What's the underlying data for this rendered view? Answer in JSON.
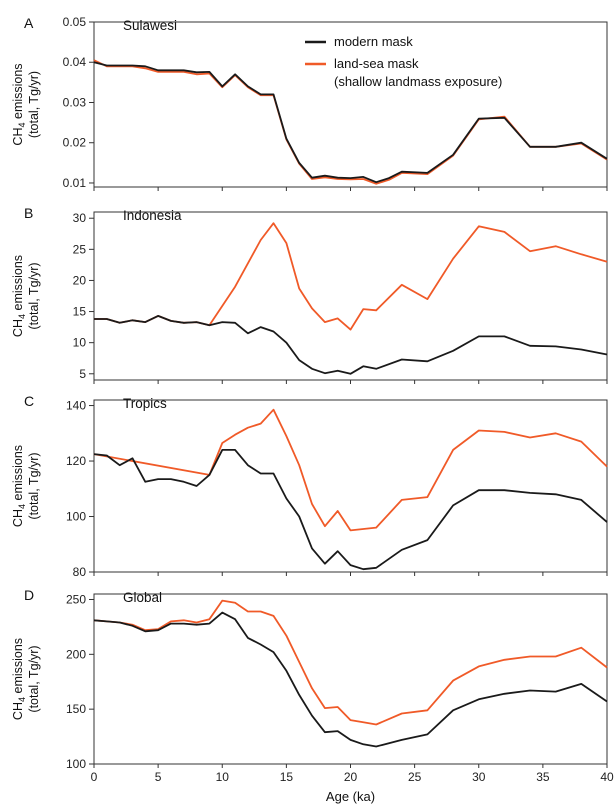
{
  "figure": {
    "xlabel": "Age (ka)",
    "legend": {
      "placement": "top-right of panel A",
      "entries": [
        {
          "label": "modern mask",
          "color": "#1a1a1a"
        },
        {
          "label": "land-sea mask",
          "sub": "(shallow landmass exposure)",
          "color": "#f05a28"
        }
      ]
    },
    "colors": {
      "modern": "#1a1a1a",
      "landsea": "#f05a28"
    }
  },
  "chart_data": [
    {
      "type": "line",
      "panel_letter": "A",
      "title": "Sulawesi",
      "ylabel_line1": "CH4 emissions",
      "ylabel_line2": "(total, Tg/yr)",
      "xlim": [
        0,
        40
      ],
      "ylim": [
        0.009,
        0.05
      ],
      "yticks": [
        "0.01",
        "0.02",
        "0.03",
        "0.04",
        "0.05"
      ],
      "xticks": [
        "0",
        "5",
        "10",
        "15",
        "20",
        "25",
        "30",
        "35",
        "40"
      ],
      "series": [
        {
          "name": "modern mask",
          "x": [
            0,
            1,
            2,
            3,
            4,
            5,
            6,
            7,
            8,
            9,
            10,
            11,
            12,
            13,
            14,
            15,
            16,
            17,
            18,
            19,
            20,
            21,
            22,
            23,
            24,
            26,
            28,
            30,
            32,
            34,
            36,
            38,
            40
          ],
          "y": [
            0.04,
            0.0392,
            0.0392,
            0.0392,
            0.039,
            0.038,
            0.038,
            0.038,
            0.0375,
            0.0376,
            0.034,
            0.037,
            0.034,
            0.032,
            0.032,
            0.021,
            0.015,
            0.0113,
            0.0118,
            0.0113,
            0.0112,
            0.0115,
            0.0102,
            0.0112,
            0.0128,
            0.0125,
            0.017,
            0.026,
            0.0262,
            0.019,
            0.019,
            0.02,
            0.016
          ]
        },
        {
          "name": "land-sea mask",
          "x": [
            0,
            1,
            2,
            3,
            4,
            5,
            6,
            7,
            8,
            9,
            10,
            11,
            12,
            13,
            14,
            15,
            16,
            17,
            18,
            19,
            20,
            21,
            22,
            23,
            24,
            26,
            28,
            30,
            32,
            34,
            36,
            38,
            40
          ],
          "y": [
            0.0405,
            0.039,
            0.039,
            0.039,
            0.0385,
            0.0376,
            0.0376,
            0.0376,
            0.037,
            0.0372,
            0.0338,
            0.0368,
            0.0338,
            0.0318,
            0.0318,
            0.0208,
            0.0148,
            0.011,
            0.0114,
            0.011,
            0.0109,
            0.011,
            0.0098,
            0.0108,
            0.0125,
            0.0122,
            0.0168,
            0.0258,
            0.0265,
            0.019,
            0.019,
            0.0198,
            0.0158
          ]
        }
      ]
    },
    {
      "type": "line",
      "panel_letter": "B",
      "title": "Indonesia",
      "ylabel_line1": "CH4 emissions",
      "ylabel_line2": "(total, Tg/yr)",
      "xlim": [
        0,
        40
      ],
      "ylim": [
        4,
        31
      ],
      "yticks": [
        "5",
        "10",
        "15",
        "20",
        "25",
        "30"
      ],
      "xticks": [
        "0",
        "5",
        "10",
        "15",
        "20",
        "25",
        "30",
        "35",
        "40"
      ],
      "series": [
        {
          "name": "modern mask",
          "x": [
            0,
            1,
            2,
            3,
            4,
            5,
            6,
            7,
            8,
            9,
            10,
            11,
            12,
            13,
            14,
            15,
            16,
            17,
            18,
            19,
            20,
            21,
            22,
            24,
            26,
            28,
            30,
            32,
            34,
            36,
            38,
            40
          ],
          "y": [
            13.8,
            13.8,
            13.2,
            13.6,
            13.3,
            14.3,
            13.5,
            13.2,
            13.3,
            12.8,
            13.3,
            13.2,
            11.5,
            12.5,
            11.8,
            10.0,
            7.2,
            5.8,
            5.1,
            5.5,
            5.0,
            6.2,
            5.8,
            7.3,
            7.0,
            8.7,
            11.0,
            11.0,
            9.5,
            9.4,
            8.9,
            8.1
          ]
        },
        {
          "name": "land-sea mask",
          "x": [
            0,
            1,
            2,
            3,
            4,
            5,
            6,
            7,
            8,
            9,
            11,
            13,
            14,
            15,
            16,
            17,
            18,
            19,
            20,
            21,
            22,
            24,
            26,
            28,
            30,
            32,
            34,
            36,
            38,
            40
          ],
          "y": [
            13.8,
            13.8,
            13.2,
            13.6,
            13.3,
            14.3,
            13.5,
            13.2,
            13.3,
            12.8,
            19.0,
            26.5,
            29.2,
            26.0,
            18.7,
            15.5,
            13.3,
            13.9,
            12.1,
            15.4,
            15.2,
            19.3,
            17.0,
            23.5,
            28.7,
            27.8,
            24.7,
            25.5,
            24.2,
            23.0
          ]
        }
      ]
    },
    {
      "type": "line",
      "panel_letter": "C",
      "title": "Tropics",
      "ylabel_line1": "CH4 emissions",
      "ylabel_line2": "(total, Tg/yr)",
      "xlim": [
        0,
        40
      ],
      "ylim": [
        80,
        142
      ],
      "yticks": [
        "80",
        "100",
        "120",
        "140"
      ],
      "xticks": [
        "0",
        "5",
        "10",
        "15",
        "20",
        "25",
        "30",
        "35",
        "40"
      ],
      "series": [
        {
          "name": "modern mask",
          "x": [
            0,
            1,
            2,
            3,
            4,
            5,
            6,
            7,
            8,
            9,
            10,
            11,
            12,
            13,
            14,
            15,
            16,
            17,
            18,
            19,
            20,
            21,
            22,
            24,
            26,
            28,
            30,
            32,
            34,
            36,
            38,
            40
          ],
          "y": [
            122.5,
            122.0,
            118.5,
            121.0,
            112.5,
            113.5,
            113.5,
            112.5,
            111.0,
            115.0,
            124.0,
            124.0,
            118.5,
            115.5,
            115.5,
            106.5,
            100.0,
            88.5,
            83.0,
            87.5,
            82.5,
            81.0,
            81.5,
            88.0,
            91.5,
            104.0,
            109.5,
            109.5,
            108.5,
            108.0,
            106.0,
            98.0
          ]
        },
        {
          "name": "land-sea mask",
          "x": [
            0,
            9,
            10,
            11,
            12,
            13,
            14,
            15,
            16,
            17,
            18,
            19,
            20,
            21,
            22,
            24,
            26,
            28,
            30,
            32,
            34,
            36,
            38,
            40
          ],
          "y": [
            122.5,
            115.0,
            126.5,
            129.5,
            132.0,
            133.5,
            138.5,
            129.0,
            118.5,
            104.5,
            96.5,
            102.0,
            95.0,
            95.5,
            96.0,
            106.0,
            107.0,
            124.0,
            131.0,
            130.5,
            128.5,
            130.0,
            127.0,
            118.0
          ]
        }
      ]
    },
    {
      "type": "line",
      "panel_letter": "D",
      "title": "Global",
      "ylabel_line1": "CH4 emissions",
      "ylabel_line2": "(total, Tg/yr)",
      "xlim": [
        0,
        40
      ],
      "ylim": [
        100,
        255
      ],
      "yticks": [
        "100",
        "150",
        "200",
        "250"
      ],
      "xticks": [
        "0",
        "5",
        "10",
        "15",
        "20",
        "25",
        "30",
        "35",
        "40"
      ],
      "series": [
        {
          "name": "modern mask",
          "x": [
            0,
            1,
            2,
            3,
            4,
            5,
            6,
            7,
            8,
            9,
            10,
            11,
            12,
            13,
            14,
            15,
            16,
            17,
            18,
            19,
            20,
            21,
            22,
            24,
            26,
            28,
            30,
            32,
            34,
            36,
            38,
            40
          ],
          "y": [
            231,
            230,
            229,
            226,
            221,
            222,
            228,
            228,
            227,
            228,
            238,
            232,
            215,
            209,
            202,
            185,
            163,
            144,
            129,
            130,
            122,
            118,
            116,
            122,
            127,
            149,
            159,
            164,
            167,
            166,
            173,
            157
          ]
        },
        {
          "name": "land-sea mask",
          "x": [
            0,
            1,
            2,
            3,
            4,
            5,
            6,
            7,
            8,
            9,
            10,
            11,
            12,
            13,
            14,
            15,
            16,
            17,
            18,
            19,
            20,
            21,
            22,
            24,
            26,
            28,
            30,
            32,
            34,
            36,
            38,
            40
          ],
          "y": [
            231,
            230,
            229,
            227,
            222,
            223,
            230,
            231,
            229,
            232,
            249,
            247,
            239,
            239,
            235,
            217,
            193,
            169,
            151,
            152,
            140,
            138,
            136,
            146,
            149,
            176,
            189,
            195,
            198,
            198,
            206,
            188
          ]
        }
      ]
    }
  ]
}
